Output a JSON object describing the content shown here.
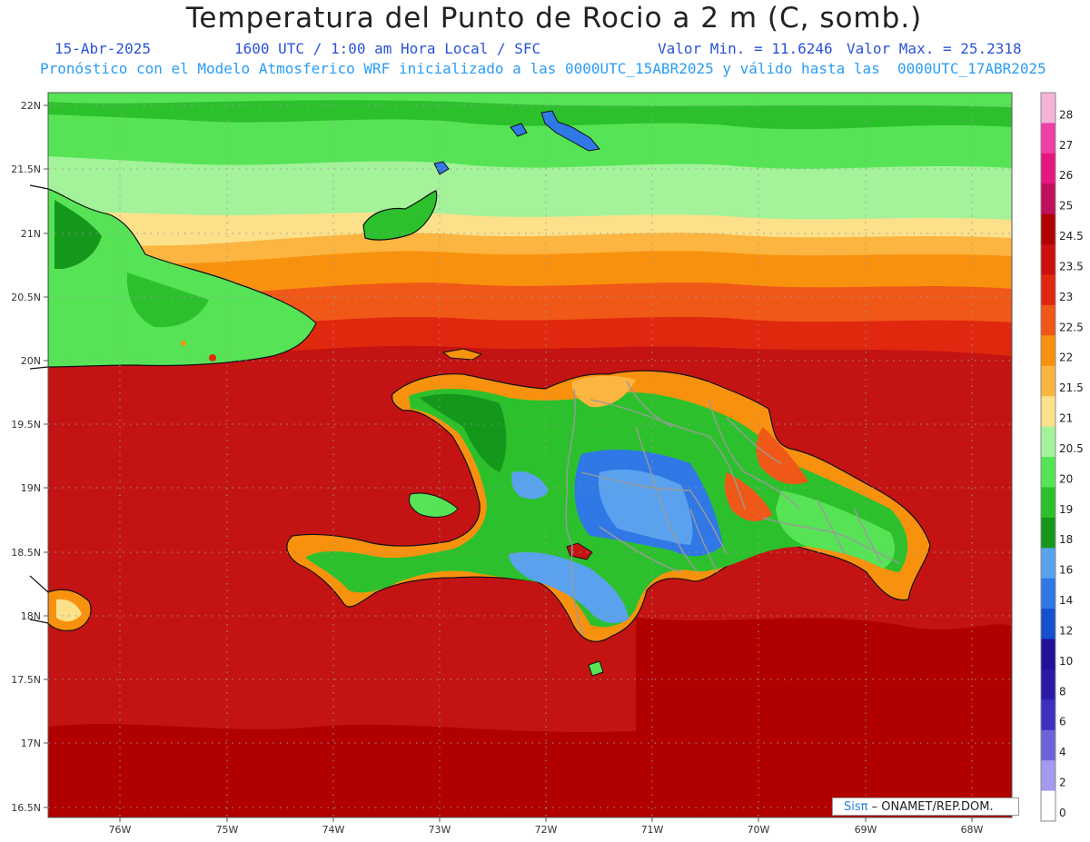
{
  "header": {
    "title": "Temperatura del Punto de Rocio a 2 m (C, somb.)",
    "date": "15-Abr-2025",
    "time_info": "1600 UTC / 1:00 am Hora Local / SFC",
    "min_value": "Valor Min. = 11.6246",
    "max_value": "Valor Max. = 25.2318",
    "model_info": "Pronóstico con el Modelo Atmosferico WRF inicializado a las 0000UTC_15ABR2025 y válido hasta las  0000UTC_17ABR2025"
  },
  "axes": {
    "lat_labels": [
      "22N",
      "21.5N",
      "21N",
      "20.5N",
      "20N",
      "19.5N",
      "19N",
      "18.5N",
      "18N",
      "17.5N",
      "17N",
      "16.5N"
    ],
    "lon_labels": [
      "76W",
      "75W",
      "74W",
      "73W",
      "72W",
      "71W",
      "70W",
      "69W",
      "68W"
    ]
  },
  "colorbar": {
    "labels": [
      "28",
      "27",
      "26",
      "25",
      "24.5",
      "23.5",
      "23",
      "22.5",
      "22",
      "21.5",
      "21",
      "20.5",
      "20",
      "19",
      "18",
      "16",
      "14",
      "12",
      "10",
      "8",
      "6",
      "4",
      "2",
      "0"
    ],
    "colors": [
      "#f6b3d8",
      "#ee3fa6",
      "#e4177e",
      "#c0105c",
      "#b00000",
      "#cc1010",
      "#e02810",
      "#f05818",
      "#f8920e",
      "#fbb540",
      "#fce08a",
      "#a4f29a",
      "#56e456",
      "#2cc12c",
      "#15971c",
      "#5aa2ee",
      "#2f78e6",
      "#1750cf",
      "#22109a",
      "#2b1aa8",
      "#3d30bf",
      "#6e62d8",
      "#a49af0",
      "#d8d6f8"
    ]
  },
  "credit": {
    "brand": "Sisπ",
    "text": " – ONAMET/REP.DOM."
  }
}
